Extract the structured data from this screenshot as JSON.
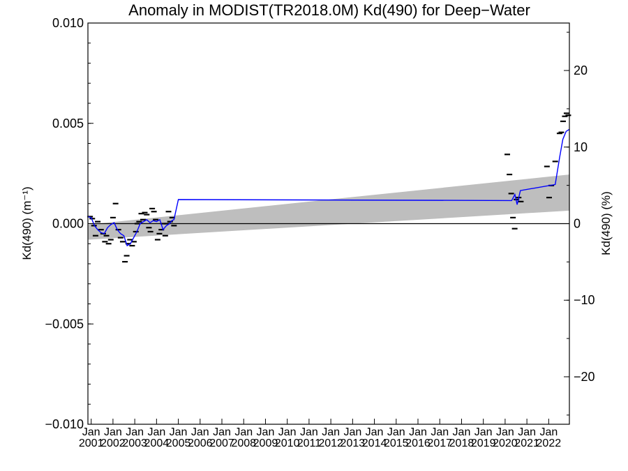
{
  "chart_data": {
    "type": "scatter",
    "title": "Anomaly in MODIST(TR2018.0M) Kd(490) for Deep−Water",
    "ylabel_left": "Kd(490) (m⁻¹)",
    "ylabel_right": "Kd(490) (%)",
    "xlim": [
      2000.85,
      2022.95
    ],
    "ylim_left": [
      -0.01,
      0.01
    ],
    "ylim_right": [
      -26.2,
      26.2
    ],
    "yticks_left": [
      -0.01,
      -0.005,
      0.0,
      0.005,
      0.01
    ],
    "ytick_labels_left": [
      "−0.010",
      "−0.005",
      "0.000",
      "0.005",
      "0.010"
    ],
    "yticks_right": [
      -20,
      -10,
      0,
      10,
      20
    ],
    "ytick_labels_right": [
      "−20",
      "−10",
      "0",
      "10",
      "20"
    ],
    "xticks": [
      {
        "x": 2001.0,
        "top": "Jan",
        "bottom": "2001"
      },
      {
        "x": 2002.0,
        "top": "Jan",
        "bottom": "2002"
      },
      {
        "x": 2003.0,
        "top": "Jan",
        "bottom": "2003"
      },
      {
        "x": 2004.0,
        "top": "Jan",
        "bottom": "2004"
      },
      {
        "x": 2005.0,
        "top": "Jan",
        "bottom": "2005"
      },
      {
        "x": 2006.0,
        "top": "Jan",
        "bottom": "2006"
      },
      {
        "x": 2007.0,
        "top": "Jan",
        "bottom": "2007"
      },
      {
        "x": 2008.0,
        "top": "Jan",
        "bottom": "2008"
      },
      {
        "x": 2009.0,
        "top": "Jan",
        "bottom": "2009"
      },
      {
        "x": 2010.0,
        "top": "Jan",
        "bottom": "2010"
      },
      {
        "x": 2011.0,
        "top": "Jan",
        "bottom": "2011"
      },
      {
        "x": 2012.0,
        "top": "Jan",
        "bottom": "2012"
      },
      {
        "x": 2013.0,
        "top": "Jan",
        "bottom": "2013"
      },
      {
        "x": 2014.0,
        "top": "Jan",
        "bottom": "2014"
      },
      {
        "x": 2015.0,
        "top": "Jan",
        "bottom": "2015"
      },
      {
        "x": 2016.0,
        "top": "Jan",
        "bottom": "2016"
      },
      {
        "x": 2017.0,
        "top": "Jan",
        "bottom": "2017"
      },
      {
        "x": 2018.0,
        "top": "Jan",
        "bottom": "2018"
      },
      {
        "x": 2019.0,
        "top": "Jan",
        "bottom": "2019"
      },
      {
        "x": 2020.0,
        "top": "Jan",
        "bottom": "2020"
      },
      {
        "x": 2021.0,
        "top": "Jan",
        "bottom": "2021"
      },
      {
        "x": 2022.0,
        "top": "Jan",
        "bottom": "2022"
      }
    ],
    "zero_line": 0.0,
    "trend_band": {
      "x": [
        2000.85,
        2022.95
      ],
      "lower": [
        -0.0008,
        0.00065
      ],
      "upper": [
        -5e-05,
        0.00245
      ],
      "color": "#bebebe"
    },
    "points": {
      "color": "#000000",
      "x": [
        2000.95,
        2001.05,
        2001.13,
        2001.2,
        2001.3,
        2001.45,
        2001.55,
        2001.63,
        2001.7,
        2001.8,
        2001.9,
        2002.0,
        2002.12,
        2002.25,
        2002.35,
        2002.45,
        2002.55,
        2002.63,
        2002.7,
        2002.78,
        2002.88,
        2002.96,
        2003.05,
        2003.12,
        2003.2,
        2003.3,
        2003.38,
        2003.46,
        2003.55,
        2003.65,
        2003.72,
        2003.8,
        2003.88,
        2003.96,
        2004.05,
        2004.13,
        2004.22,
        2004.3,
        2004.4,
        2004.47,
        2004.55,
        2004.62,
        2004.72,
        2004.8,
        2020.1,
        2020.2,
        2020.28,
        2020.36,
        2020.44,
        2020.52,
        2020.62,
        2020.72,
        2021.92,
        2022.02,
        2022.12,
        2022.3,
        2022.5,
        2022.58,
        2022.66,
        2022.74,
        2022.82,
        2022.9
      ],
      "y": [
        0.00035,
        0.00025,
        -0.0001,
        -0.0006,
        0.0001,
        -0.0003,
        -0.0005,
        -0.0009,
        -0.0006,
        -0.001,
        -0.0008,
        0.0003,
        0.001,
        -0.0003,
        -0.0007,
        -0.0009,
        -0.0019,
        -0.0016,
        -0.001,
        -0.0008,
        -0.0011,
        -0.0009,
        -0.0004,
        0.0,
        0.0001,
        0.0005,
        0.0002,
        0.00055,
        0.00045,
        -0.0002,
        -0.0004,
        0.00075,
        0.0006,
        0.0002,
        -0.0008,
        -0.0005,
        -0.0003,
        0.0,
        -0.0006,
        0.0,
        0.0006,
        0.0001,
        0.0003,
        -0.0001,
        0.00345,
        0.00245,
        0.0015,
        0.0003,
        -0.00025,
        0.0012,
        0.0013,
        0.0011,
        0.00285,
        0.0013,
        0.0019,
        0.0031,
        0.0045,
        0.00455,
        0.0051,
        0.00535,
        0.0055,
        0.0054
      ]
    },
    "running_mean": {
      "color": "#0000ff",
      "x": [
        2000.85,
        2001.0,
        2001.15,
        2001.3,
        2001.45,
        2001.6,
        2001.75,
        2001.9,
        2002.05,
        2002.2,
        2002.35,
        2002.5,
        2002.65,
        2002.8,
        2002.95,
        2003.1,
        2003.25,
        2003.4,
        2003.55,
        2003.7,
        2003.85,
        2004.0,
        2004.15,
        2004.3,
        2004.45,
        2004.6,
        2004.7,
        2004.8,
        2005.0,
        2020.3,
        2020.45,
        2020.55,
        2020.7,
        2022.3,
        2022.5,
        2022.65,
        2022.8,
        2022.95
      ],
      "y": [
        0.00035,
        0.0003,
        -0.0001,
        -0.0003,
        -0.00045,
        -0.0005,
        -0.0002,
        -5e-05,
        5e-05,
        -0.0003,
        -0.0005,
        -0.0006,
        -0.0011,
        -0.001,
        -0.0007,
        -0.0004,
        0.0,
        0.0001,
        0.0002,
        5e-05,
        0.00015,
        0.0001,
        0.0002,
        -0.0003,
        -0.0001,
        0.0,
        0.00015,
        0.0002,
        0.0012,
        0.00115,
        0.00145,
        0.00095,
        0.00165,
        0.00195,
        0.0033,
        0.0042,
        0.0046,
        0.0047
      ]
    }
  }
}
